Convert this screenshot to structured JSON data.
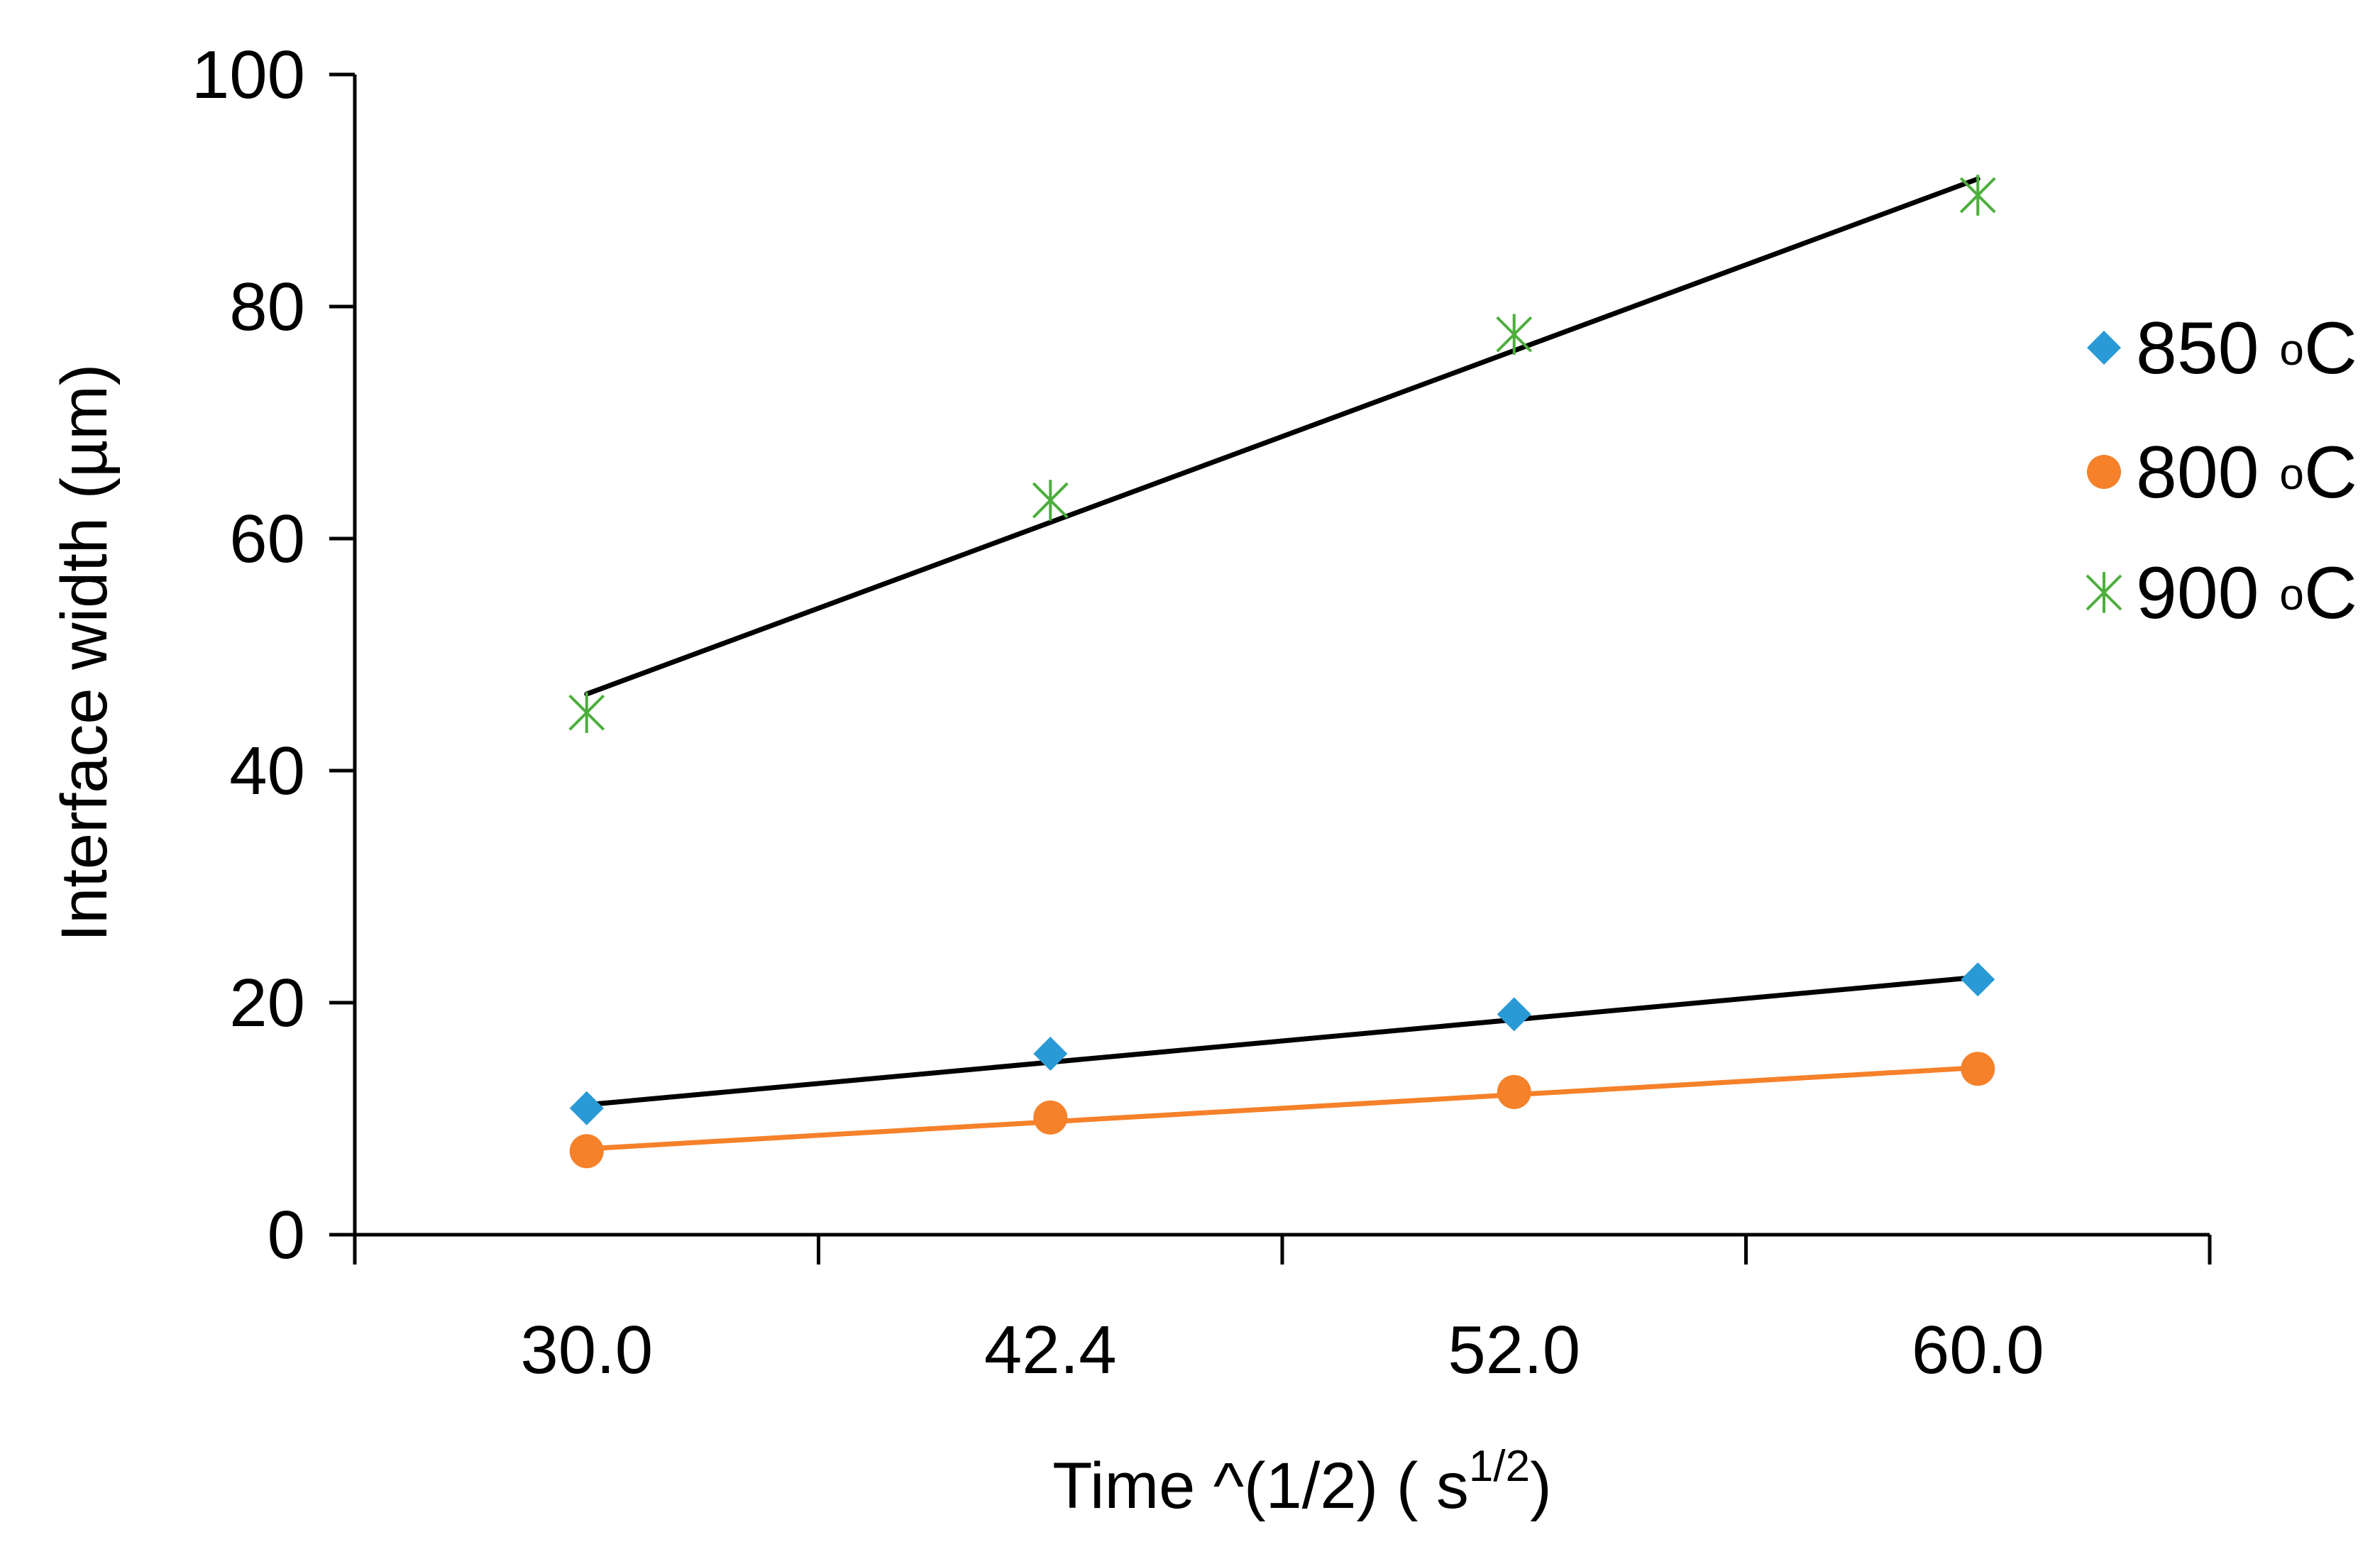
{
  "chart_data": {
    "type": "scatter",
    "title": "",
    "xlabel": "Time ^(1/2) ( s",
    "xlabel_sup": "1/2",
    "xlabel_tail": ")",
    "ylabel": "Interface width  (µm)",
    "categories": [
      "30.0",
      "42.4",
      "52.0",
      "60.0"
    ],
    "ylim": [
      0,
      100
    ],
    "yticks": [
      "0",
      "20",
      "40",
      "60",
      "80",
      "100"
    ],
    "legend_position": "right",
    "series": [
      {
        "name": "850",
        "unit_sup": "o",
        "unit": "C",
        "marker": "diamond",
        "color": "#2a9ad6",
        "trendline_color": "#000000",
        "values": [
          10.9,
          15.6,
          19.0,
          22.0
        ],
        "trendline": [
          11.2,
          22.2
        ]
      },
      {
        "name": "800",
        "unit_sup": "o",
        "unit": "C",
        "marker": "circle",
        "color": "#f5812a",
        "trendline_color": "#f5812a",
        "values": [
          7.2,
          10.1,
          12.3,
          14.3
        ],
        "trendline": [
          7.4,
          14.4
        ]
      },
      {
        "name": "900",
        "unit_sup": "o",
        "unit": "C",
        "marker": "asterisk",
        "color": "#4caf3c",
        "trendline_color": "#000000",
        "values": [
          45.0,
          63.3,
          77.6,
          89.6
        ],
        "trendline": [
          46.6,
          91.0
        ]
      }
    ]
  }
}
